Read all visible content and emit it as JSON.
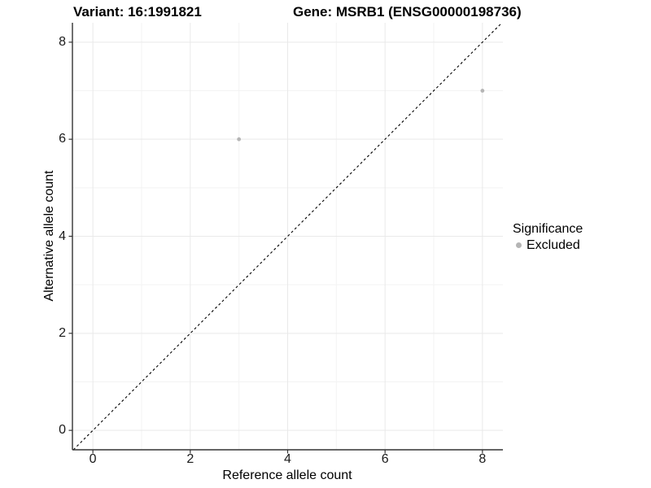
{
  "chart_data": {
    "type": "scatter",
    "title_left": "Variant: 16:1991821",
    "title_right": "Gene: MSRB1 (ENSG00000198736)",
    "xlabel": "Reference allele count",
    "ylabel": "Alternative allele count",
    "xlim": [
      -0.42,
      8.42
    ],
    "ylim": [
      -0.4,
      8.4
    ],
    "x_major_ticks": [
      0,
      2,
      4,
      6,
      8
    ],
    "y_major_ticks": [
      0,
      2,
      4,
      6,
      8
    ],
    "x_minor_ticks": [
      1,
      3,
      5,
      7
    ],
    "y_minor_ticks": [
      1,
      3,
      5,
      7
    ],
    "grid": true,
    "reference_line": {
      "type": "identity",
      "style": "dashed",
      "color": "#000000"
    },
    "series": [
      {
        "name": "Excluded",
        "color": "#b5b5b5",
        "points": [
          {
            "x": 3,
            "y": 6
          },
          {
            "x": 8,
            "y": 7
          }
        ]
      }
    ],
    "legend": {
      "title": "Significance",
      "position": "right",
      "items": [
        {
          "label": "Excluded",
          "color": "#b5b5b5"
        }
      ]
    },
    "style": {
      "background": "#ffffff",
      "grid_major_color": "#e9e9e9",
      "grid_minor_color": "#f3f3f3",
      "axis_line_color": "#333333",
      "tick_color": "#333333",
      "text_color": "#000000"
    }
  }
}
